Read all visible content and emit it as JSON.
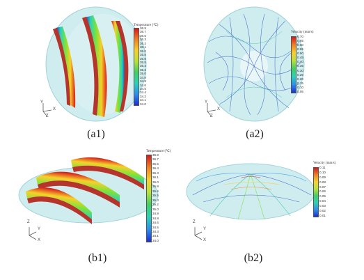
{
  "panels": {
    "a1": {
      "caption": "(a1)",
      "legend_title": "Temperature (℃)",
      "ticks": [
        "36.9",
        "36.7",
        "36.5",
        "36.3",
        "36.2",
        "36.1",
        "36.0",
        "35.8",
        "35.6",
        "35.5",
        "35.4",
        "35.2",
        "35.0",
        "34.9",
        "34.8",
        "34.6",
        "34.5",
        "34.4",
        "34.2",
        "34.1",
        "34.0"
      ],
      "axes": {
        "y": "Y",
        "x": "X",
        "z": "Z"
      }
    },
    "a2": {
      "caption": "(a2)",
      "legend_title": "Velocity (mm/s)",
      "ticks": [
        "0.70",
        "0.65",
        "0.60",
        "0.55",
        "0.50",
        "0.45",
        "0.40",
        "0.35",
        "0.30",
        "0.25",
        "0.20",
        "0.15",
        "0.10",
        "0.05"
      ],
      "axes": {
        "y": "Y",
        "x": "X",
        "z": "Z"
      }
    },
    "b1": {
      "caption": "(b1)",
      "legend_title": "Temperature (℃)",
      "ticks": [
        "36.9",
        "36.7",
        "36.5",
        "36.4",
        "36.3",
        "36.1",
        "36.0",
        "35.8",
        "35.6",
        "35.5",
        "35.3",
        "35.2",
        "35.0",
        "34.9",
        "34.8",
        "34.6",
        "34.5",
        "34.3",
        "34.1",
        "34.0"
      ],
      "axes": {
        "z": "Z",
        "y": "Y",
        "x": "X"
      }
    },
    "b2": {
      "caption": "(b2)",
      "legend_title": "Velocity (mm/s)",
      "ticks": [
        "0.11",
        "0.10",
        "0.09",
        "0.08",
        "0.07",
        "0.06",
        "0.05",
        "0.04",
        "0.03",
        "0.02",
        "0.01"
      ],
      "axes": {
        "z": "Z",
        "y": "Y",
        "x": "X"
      }
    }
  },
  "colors": {
    "dome": "#cfecef",
    "dome_edge": "#9fd3d9",
    "copper": "#b5342c",
    "colormap": [
      "#d7191c",
      "#f2801f",
      "#f7d02a",
      "#b6e23a",
      "#3fcf63",
      "#2ad2b8",
      "#2a8ff0",
      "#1a2fd6"
    ]
  },
  "icons": {
    "axis_triad": "axis-triad-icon"
  }
}
